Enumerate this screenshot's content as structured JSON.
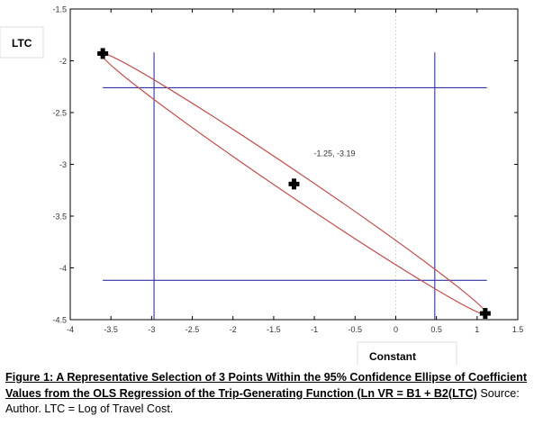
{
  "chart_data": {
    "type": "scatter",
    "ylabel": "LTC",
    "xlabel": "Constant",
    "xlim": [
      -4,
      1.5
    ],
    "ylim": [
      -4.5,
      -1.5
    ],
    "xticks": [
      "-4",
      "-3.5",
      "-3",
      "-2.5",
      "-2",
      "-1.5",
      "-1",
      "-0.5",
      "0",
      "0.5",
      "1",
      "1.5"
    ],
    "yticks": [
      "-1.5",
      "-2",
      "-2.5",
      "-3",
      "-3.5",
      "-4",
      "-4.5"
    ],
    "points": [
      {
        "x": -3.6,
        "y": -1.93
      },
      {
        "x": -1.25,
        "y": -3.19
      },
      {
        "x": 1.1,
        "y": -4.44
      }
    ],
    "point_annotation": "-1.25, -3.19",
    "ellipse": {
      "center_x": -1.25,
      "center_y": -3.19,
      "endpoint_a": {
        "x": -3.62,
        "y": -1.93
      },
      "endpoint_b": {
        "x": 1.12,
        "y": -4.45
      },
      "minor_halfwidth_x": 0.26
    },
    "vertical_lines_x": [
      -2.97,
      0.48
    ],
    "vertical_lines_y_range": [
      -4.5,
      -1.92
    ],
    "horizontal_lines_y": [
      -2.26,
      -4.12
    ],
    "horizontal_lines_x_range": [
      -3.6,
      1.12
    ],
    "zero_reference_x": 0,
    "colors": {
      "ellipse": "#c0504d",
      "bounds": "#3333a0",
      "points": "#000000",
      "zero_line": "#bbbbbb"
    },
    "grid": false
  },
  "caption": {
    "bold_text": "Figure 1: A Representative Selection of 3 Points Within the 95% Confidence Ellipse of Coefficient Values from the OLS Regression of the Trip-Generating Function (Ln VR = B1 + B2(LTC)",
    "source_text": "Source: Author.  LTC = Log of Travel Cost."
  }
}
